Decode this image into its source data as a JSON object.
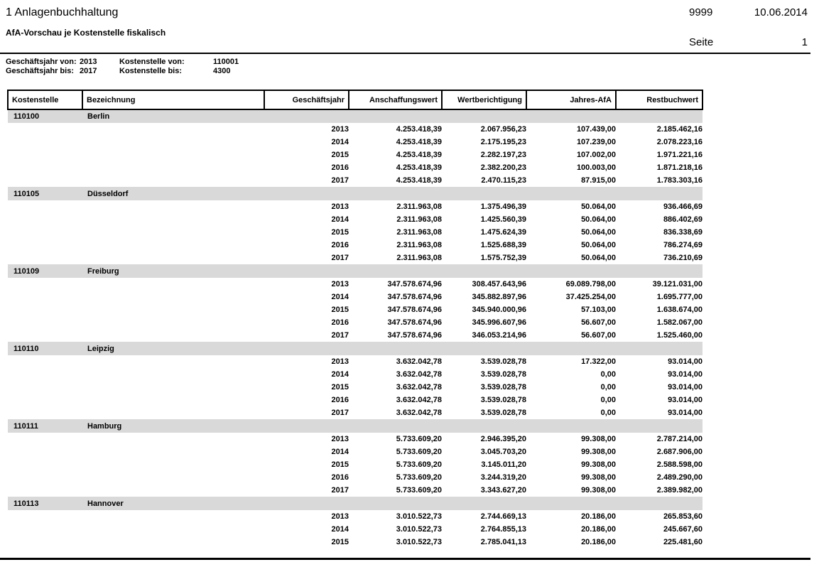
{
  "header": {
    "title": "1 Anlagenbuchhaltung",
    "subtitle": "AfA-Vorschau je Kostenstelle fiskalisch",
    "client_number": "9999",
    "date": "10.06.2014",
    "page_label": "Seite",
    "page_number": "1"
  },
  "filters": {
    "row1": {
      "label1": "Geschäftsjahr von:",
      "value1": "2013",
      "label2": "Kostenstelle von:",
      "value2": "110001"
    },
    "row2": {
      "label1": "Geschäftsjahr bis:",
      "value1": "2017",
      "label2": "Kostenstelle bis:",
      "value2": "4300"
    }
  },
  "table": {
    "columns": [
      "Kostenstelle",
      "Bezeichnung",
      "Geschäftsjahr",
      "Anschaffungswert",
      "Wertberichtigung",
      "Jahres-AfA",
      "Restbuchwert"
    ],
    "groups": [
      {
        "code": "110100",
        "name": "Berlin",
        "rows": [
          {
            "year": "2013",
            "anschaffungswert": "4.253.418,39",
            "wertberichtigung": "2.067.956,23",
            "jahres_afa": "107.439,00",
            "restbuchwert": "2.185.462,16"
          },
          {
            "year": "2014",
            "anschaffungswert": "4.253.418,39",
            "wertberichtigung": "2.175.195,23",
            "jahres_afa": "107.239,00",
            "restbuchwert": "2.078.223,16"
          },
          {
            "year": "2015",
            "anschaffungswert": "4.253.418,39",
            "wertberichtigung": "2.282.197,23",
            "jahres_afa": "107.002,00",
            "restbuchwert": "1.971.221,16"
          },
          {
            "year": "2016",
            "anschaffungswert": "4.253.418,39",
            "wertberichtigung": "2.382.200,23",
            "jahres_afa": "100.003,00",
            "restbuchwert": "1.871.218,16"
          },
          {
            "year": "2017",
            "anschaffungswert": "4.253.418,39",
            "wertberichtigung": "2.470.115,23",
            "jahres_afa": "87.915,00",
            "restbuchwert": "1.783.303,16"
          }
        ]
      },
      {
        "code": "110105",
        "name": "Düsseldorf",
        "rows": [
          {
            "year": "2013",
            "anschaffungswert": "2.311.963,08",
            "wertberichtigung": "1.375.496,39",
            "jahres_afa": "50.064,00",
            "restbuchwert": "936.466,69"
          },
          {
            "year": "2014",
            "anschaffungswert": "2.311.963,08",
            "wertberichtigung": "1.425.560,39",
            "jahres_afa": "50.064,00",
            "restbuchwert": "886.402,69"
          },
          {
            "year": "2015",
            "anschaffungswert": "2.311.963,08",
            "wertberichtigung": "1.475.624,39",
            "jahres_afa": "50.064,00",
            "restbuchwert": "836.338,69"
          },
          {
            "year": "2016",
            "anschaffungswert": "2.311.963,08",
            "wertberichtigung": "1.525.688,39",
            "jahres_afa": "50.064,00",
            "restbuchwert": "786.274,69"
          },
          {
            "year": "2017",
            "anschaffungswert": "2.311.963,08",
            "wertberichtigung": "1.575.752,39",
            "jahres_afa": "50.064,00",
            "restbuchwert": "736.210,69"
          }
        ]
      },
      {
        "code": "110109",
        "name": "Freiburg",
        "rows": [
          {
            "year": "2013",
            "anschaffungswert": "347.578.674,96",
            "wertberichtigung": "308.457.643,96",
            "jahres_afa": "69.089.798,00",
            "restbuchwert": "39.121.031,00"
          },
          {
            "year": "2014",
            "anschaffungswert": "347.578.674,96",
            "wertberichtigung": "345.882.897,96",
            "jahres_afa": "37.425.254,00",
            "restbuchwert": "1.695.777,00"
          },
          {
            "year": "2015",
            "anschaffungswert": "347.578.674,96",
            "wertberichtigung": "345.940.000,96",
            "jahres_afa": "57.103,00",
            "restbuchwert": "1.638.674,00"
          },
          {
            "year": "2016",
            "anschaffungswert": "347.578.674,96",
            "wertberichtigung": "345.996.607,96",
            "jahres_afa": "56.607,00",
            "restbuchwert": "1.582.067,00"
          },
          {
            "year": "2017",
            "anschaffungswert": "347.578.674,96",
            "wertberichtigung": "346.053.214,96",
            "jahres_afa": "56.607,00",
            "restbuchwert": "1.525.460,00"
          }
        ]
      },
      {
        "code": "110110",
        "name": "Leipzig",
        "rows": [
          {
            "year": "2013",
            "anschaffungswert": "3.632.042,78",
            "wertberichtigung": "3.539.028,78",
            "jahres_afa": "17.322,00",
            "restbuchwert": "93.014,00"
          },
          {
            "year": "2014",
            "anschaffungswert": "3.632.042,78",
            "wertberichtigung": "3.539.028,78",
            "jahres_afa": "0,00",
            "restbuchwert": "93.014,00"
          },
          {
            "year": "2015",
            "anschaffungswert": "3.632.042,78",
            "wertberichtigung": "3.539.028,78",
            "jahres_afa": "0,00",
            "restbuchwert": "93.014,00"
          },
          {
            "year": "2016",
            "anschaffungswert": "3.632.042,78",
            "wertberichtigung": "3.539.028,78",
            "jahres_afa": "0,00",
            "restbuchwert": "93.014,00"
          },
          {
            "year": "2017",
            "anschaffungswert": "3.632.042,78",
            "wertberichtigung": "3.539.028,78",
            "jahres_afa": "0,00",
            "restbuchwert": "93.014,00"
          }
        ]
      },
      {
        "code": "110111",
        "name": "Hamburg",
        "rows": [
          {
            "year": "2013",
            "anschaffungswert": "5.733.609,20",
            "wertberichtigung": "2.946.395,20",
            "jahres_afa": "99.308,00",
            "restbuchwert": "2.787.214,00"
          },
          {
            "year": "2014",
            "anschaffungswert": "5.733.609,20",
            "wertberichtigung": "3.045.703,20",
            "jahres_afa": "99.308,00",
            "restbuchwert": "2.687.906,00"
          },
          {
            "year": "2015",
            "anschaffungswert": "5.733.609,20",
            "wertberichtigung": "3.145.011,20",
            "jahres_afa": "99.308,00",
            "restbuchwert": "2.588.598,00"
          },
          {
            "year": "2016",
            "anschaffungswert": "5.733.609,20",
            "wertberichtigung": "3.244.319,20",
            "jahres_afa": "99.308,00",
            "restbuchwert": "2.489.290,00"
          },
          {
            "year": "2017",
            "anschaffungswert": "5.733.609,20",
            "wertberichtigung": "3.343.627,20",
            "jahres_afa": "99.308,00",
            "restbuchwert": "2.389.982,00"
          }
        ]
      },
      {
        "code": "110113",
        "name": "Hannover",
        "rows": [
          {
            "year": "2013",
            "anschaffungswert": "3.010.522,73",
            "wertberichtigung": "2.744.669,13",
            "jahres_afa": "20.186,00",
            "restbuchwert": "265.853,60"
          },
          {
            "year": "2014",
            "anschaffungswert": "3.010.522,73",
            "wertberichtigung": "2.764.855,13",
            "jahres_afa": "20.186,00",
            "restbuchwert": "245.667,60"
          },
          {
            "year": "2015",
            "anschaffungswert": "3.010.522,73",
            "wertberichtigung": "2.785.041,13",
            "jahres_afa": "20.186,00",
            "restbuchwert": "225.481,60"
          }
        ]
      }
    ]
  },
  "colors": {
    "group_band": "#d9d9d9",
    "text": "#000000",
    "background": "#ffffff"
  }
}
